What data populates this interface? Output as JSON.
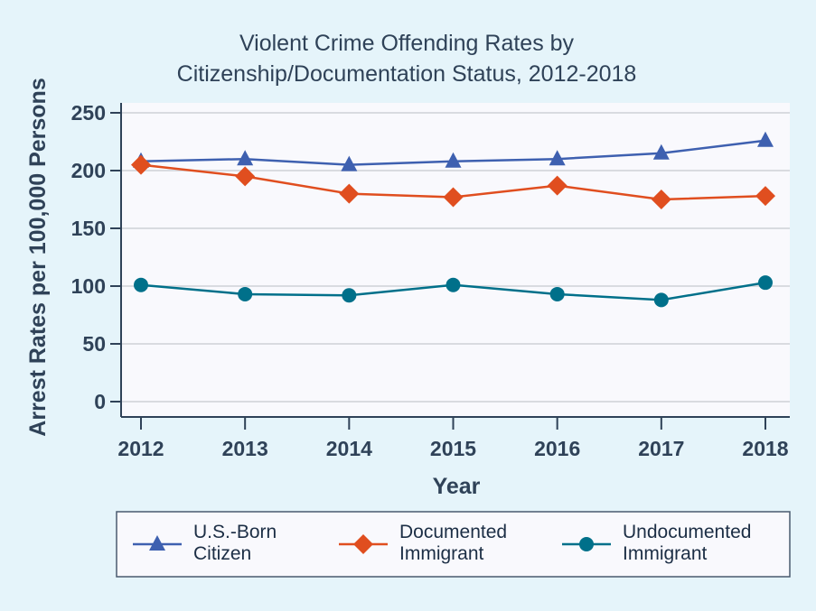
{
  "chart_data": {
    "type": "line",
    "title": [
      "Violent Crime Offending Rates by",
      "Citizenship/Documentation Status, 2012-2018"
    ],
    "xlabel": "Year",
    "ylabel": "Arrest Rates per 100,000 Persons",
    "x": [
      2012,
      2013,
      2014,
      2015,
      2016,
      2017,
      2018
    ],
    "x_tick_labels": [
      "2012",
      "2013",
      "2014",
      "2015",
      "2016",
      "2017",
      "2018"
    ],
    "y_ticks": [
      0,
      50,
      100,
      150,
      200,
      250
    ],
    "y_tick_labels": [
      "0",
      "50",
      "100",
      "150",
      "200",
      "250"
    ],
    "ylim": [
      0,
      250
    ],
    "grid": true,
    "legend_position": "bottom",
    "series": [
      {
        "name": "U.S.-Born Citizen",
        "legend_lines": [
          "U.S.-Born",
          "Citizen"
        ],
        "marker": "triangle",
        "color": "#3e60b0",
        "values": [
          208,
          210,
          205,
          208,
          210,
          215,
          226
        ]
      },
      {
        "name": "Documented Immigrant",
        "legend_lines": [
          "Documented",
          "Immigrant"
        ],
        "marker": "diamond",
        "color": "#e04e1f",
        "values": [
          205,
          195,
          180,
          177,
          187,
          175,
          178
        ]
      },
      {
        "name": "Undocumented Immigrant",
        "legend_lines": [
          "Undocumented",
          "Immigrant"
        ],
        "marker": "circle",
        "color": "#00708a",
        "values": [
          101,
          93,
          92,
          101,
          93,
          88,
          103
        ]
      }
    ]
  },
  "colors": {
    "background": "#e5f4fa",
    "plot_background": "#f9f9fd",
    "axis": "#2f4258",
    "grid": "#d9dbe0"
  }
}
